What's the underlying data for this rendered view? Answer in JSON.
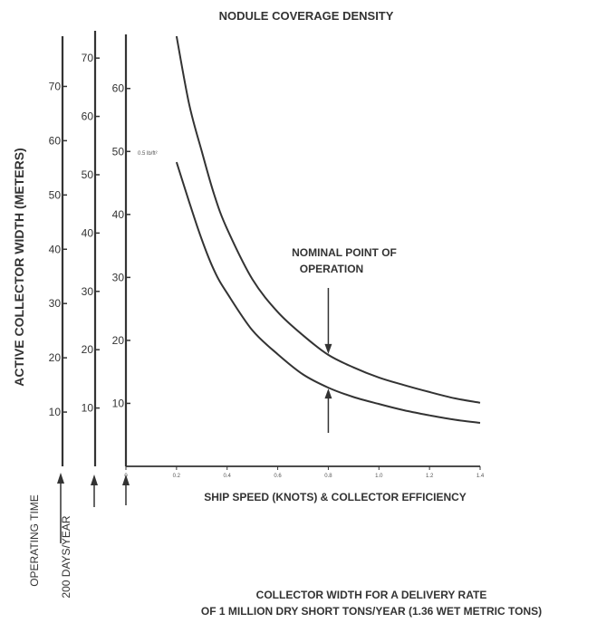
{
  "chart_data": {
    "type": "line",
    "title": "NODULE COVERAGE DENSITY",
    "ylabel": "ACTIVE COLLECTOR WIDTH (METERS)",
    "xlabel": "SHIP SPEED (KNOTS) & COLLECTOR EFFICIENCY",
    "caption_line1": "COLLECTOR  WIDTH FOR A DELIVERY RATE",
    "caption_line2": "OF 1 MILLION DRY SHORT TONS/YEAR (1.36 WET METRIC TONS)",
    "left_label_1": "OPERATING TIME",
    "left_label_2": "200 DAYS/YEAR",
    "annotation": [
      "NOMINAL POINT OF",
      "OPERATION"
    ],
    "small_label": "0.5 lb/ft²",
    "x_ticks": [
      "0",
      "0.2",
      "0.4",
      "0.6",
      "0.8",
      "1.0",
      "1.2",
      "1.4"
    ],
    "xlim": [
      0,
      1.4
    ],
    "nominal_x": 0.8,
    "y_axes": [
      {
        "ticks": [
          10,
          20,
          30,
          40,
          50,
          60,
          70
        ],
        "ylim": [
          0,
          79.25
        ]
      },
      {
        "ticks": [
          10,
          20,
          30,
          40,
          50,
          60,
          70
        ],
        "ylim": [
          0,
          73.75
        ]
      },
      {
        "ticks": [
          10,
          20,
          30,
          40,
          50,
          60
        ],
        "ylim": [
          0,
          68.3
        ]
      }
    ],
    "series": [
      {
        "x": [
          0.2,
          0.25,
          0.3,
          0.35,
          0.4,
          0.5,
          0.6,
          0.7,
          0.8,
          0.9,
          1.0,
          1.1,
          1.2,
          1.3,
          1.4
        ],
        "y": [
          68.3,
          57.5,
          50.0,
          43.0,
          37.7,
          29.7,
          24.5,
          20.8,
          17.7,
          15.7,
          14.1,
          12.9,
          11.8,
          10.8,
          10.1
        ]
      },
      {
        "x": [
          0.2,
          0.25,
          0.3,
          0.35,
          0.4,
          0.5,
          0.6,
          0.7,
          0.8,
          0.9,
          1.0,
          1.1,
          1.2,
          1.3,
          1.4
        ],
        "y": [
          48.3,
          42.0,
          36.0,
          31.0,
          27.5,
          21.6,
          17.8,
          14.6,
          12.5,
          11.0,
          9.9,
          8.9,
          8.1,
          7.4,
          6.9
        ]
      }
    ]
  }
}
